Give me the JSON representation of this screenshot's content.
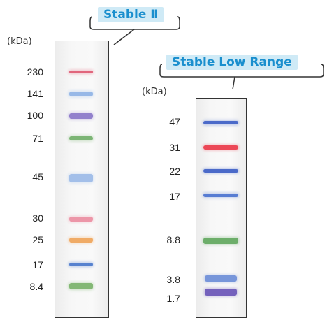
{
  "ladders": [
    {
      "name": "Stable Ⅱ",
      "unit": "(kDa)",
      "bands": [
        {
          "label": "230",
          "color": "#e05a72"
        },
        {
          "label": "141",
          "color": "#8fb3e6"
        },
        {
          "label": "100",
          "color": "#8a77c9"
        },
        {
          "label": "71",
          "color": "#72b06a"
        },
        {
          "label": "45",
          "color": "#9cbbe8"
        },
        {
          "label": "30",
          "color": "#ec8ea2"
        },
        {
          "label": "25",
          "color": "#f0a55a"
        },
        {
          "label": "17",
          "color": "#4a78cc"
        },
        {
          "label": "8.4",
          "color": "#7ab36a"
        }
      ]
    },
    {
      "name": "Stable Low Range",
      "unit": "(kDa)",
      "bands": [
        {
          "label": "47",
          "color": "#3d5fc6"
        },
        {
          "label": "31",
          "color": "#ec3a4a"
        },
        {
          "label": "22",
          "color": "#3d5fc6"
        },
        {
          "label": "17",
          "color": "#4a72d0"
        },
        {
          "label": "8.8",
          "color": "#62a85f"
        },
        {
          "label": "3.8",
          "color": "#6d8ed8"
        },
        {
          "label": "1.7",
          "color": "#6a55b8"
        }
      ]
    }
  ]
}
